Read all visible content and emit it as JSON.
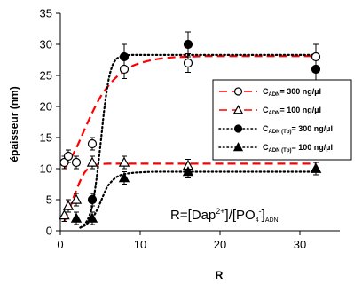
{
  "chart_data": {
    "type": "scatter",
    "xlabel": "R",
    "ylabel": "épaisseur (nm)",
    "xlim": [
      0,
      35
    ],
    "ylim": [
      0,
      35
    ],
    "x_ticks": [
      "0",
      "10",
      "20",
      "30"
    ],
    "y_ticks": [
      "0",
      "5",
      "10",
      "15",
      "20",
      "25",
      "30",
      "35"
    ],
    "grid": false,
    "legend_position": "right",
    "annotation": {
      "prefix": "R=[Dap",
      "sup1": "2+",
      "mid": "]/[PO",
      "sub1": "4",
      "sup2": "-",
      "close": "]",
      "sub2": "ADN"
    },
    "series": [
      {
        "name": "CADN= 300 ng/µl",
        "legend_main": "C",
        "legend_sub": "ADN",
        "legend_rest": "= 300 ng/µl",
        "marker": "circle-open",
        "line": "red-dashed",
        "x": [
          0.5,
          1.0,
          2.0,
          4.0,
          8.0,
          16.0,
          32.0
        ],
        "y": [
          11.0,
          12.0,
          11.0,
          14.0,
          26.0,
          27.0,
          28.0
        ],
        "err": [
          1.0,
          1.0,
          1.0,
          1.0,
          1.5,
          1.5,
          2.0
        ]
      },
      {
        "name": "CADN= 100 ng/µl",
        "legend_main": "C",
        "legend_sub": "ADN",
        "legend_rest": "= 100 ng/µl",
        "marker": "triangle-open",
        "line": "red-dashed",
        "x": [
          0.5,
          1.0,
          2.0,
          4.0,
          8.0,
          16.0,
          32.0
        ],
        "y": [
          2.5,
          4.0,
          5.0,
          11.0,
          11.0,
          10.5,
          10.0
        ],
        "err": [
          1.0,
          1.0,
          1.0,
          1.0,
          1.0,
          1.0,
          1.0
        ]
      },
      {
        "name": "CADN (Tp)= 300 ng/µl",
        "legend_main": "C",
        "legend_sub": "ADN (Tp)",
        "legend_rest": "= 300 ng/µl",
        "marker": "circle-filled",
        "line": "black-dotted",
        "x": [
          4.0,
          8.0,
          16.0,
          32.0
        ],
        "y": [
          5.0,
          28.0,
          30.0,
          26.0
        ],
        "err": [
          1.0,
          2.0,
          2.0,
          2.0
        ]
      },
      {
        "name": "CADN (Tp)= 100 ng/µl",
        "legend_main": "C",
        "legend_sub": "ADN (Tp)",
        "legend_rest": "= 100 ng/µl",
        "marker": "triangle-filled",
        "line": "black-dotted",
        "x": [
          2.0,
          4.0,
          8.0,
          16.0,
          32.0
        ],
        "y": [
          2.0,
          2.0,
          8.5,
          9.5,
          10.0
        ],
        "err": [
          1.0,
          1.0,
          1.0,
          1.0,
          1.0
        ]
      }
    ],
    "fits": [
      {
        "name": "",
        "style": "red-dashed",
        "x": [
          0.5,
          1,
          2,
          3,
          4,
          5,
          6,
          7,
          8,
          9,
          10,
          12,
          14,
          16,
          18,
          20,
          24,
          28,
          32
        ],
        "y": [
          10.0,
          11.0,
          13.3,
          16.2,
          19.0,
          21.5,
          23.3,
          24.7,
          25.7,
          26.5,
          27.0,
          27.6,
          27.9,
          28.0,
          28.1,
          28.1,
          28.1,
          28.1,
          28.1
        ]
      },
      {
        "name": "",
        "style": "red-dashed",
        "x": [
          0.5,
          1,
          2,
          3,
          4,
          5,
          6,
          7,
          8,
          10,
          12,
          16,
          20,
          24,
          28,
          32
        ],
        "y": [
          1.5,
          3.0,
          6.5,
          9.3,
          10.4,
          10.7,
          10.8,
          10.8,
          10.8,
          10.8,
          10.8,
          10.8,
          10.8,
          10.8,
          10.8,
          10.8
        ]
      },
      {
        "name": "",
        "style": "black-dotted",
        "x": [
          2.5,
          3,
          3.5,
          4,
          4.5,
          5,
          5.5,
          6,
          6.5,
          7,
          7.5,
          8,
          9,
          10,
          12,
          16,
          20,
          24,
          28,
          32
        ],
        "y": [
          0.5,
          1.0,
          2.0,
          4.0,
          8.0,
          13.5,
          19.5,
          24.0,
          26.5,
          27.6,
          28.0,
          28.2,
          28.3,
          28.3,
          28.3,
          28.3,
          28.3,
          28.3,
          28.3,
          28.3
        ]
      },
      {
        "name": "",
        "style": "black-dotted",
        "x": [
          2.5,
          3,
          3.5,
          4,
          4.5,
          5,
          5.5,
          6,
          7,
          8,
          9,
          10,
          12,
          16,
          20,
          24,
          28,
          32
        ],
        "y": [
          0.5,
          0.8,
          1.3,
          2.0,
          3.1,
          4.5,
          6.0,
          7.3,
          8.6,
          9.1,
          9.3,
          9.4,
          9.5,
          9.5,
          9.5,
          9.5,
          9.5,
          9.5
        ]
      }
    ]
  }
}
